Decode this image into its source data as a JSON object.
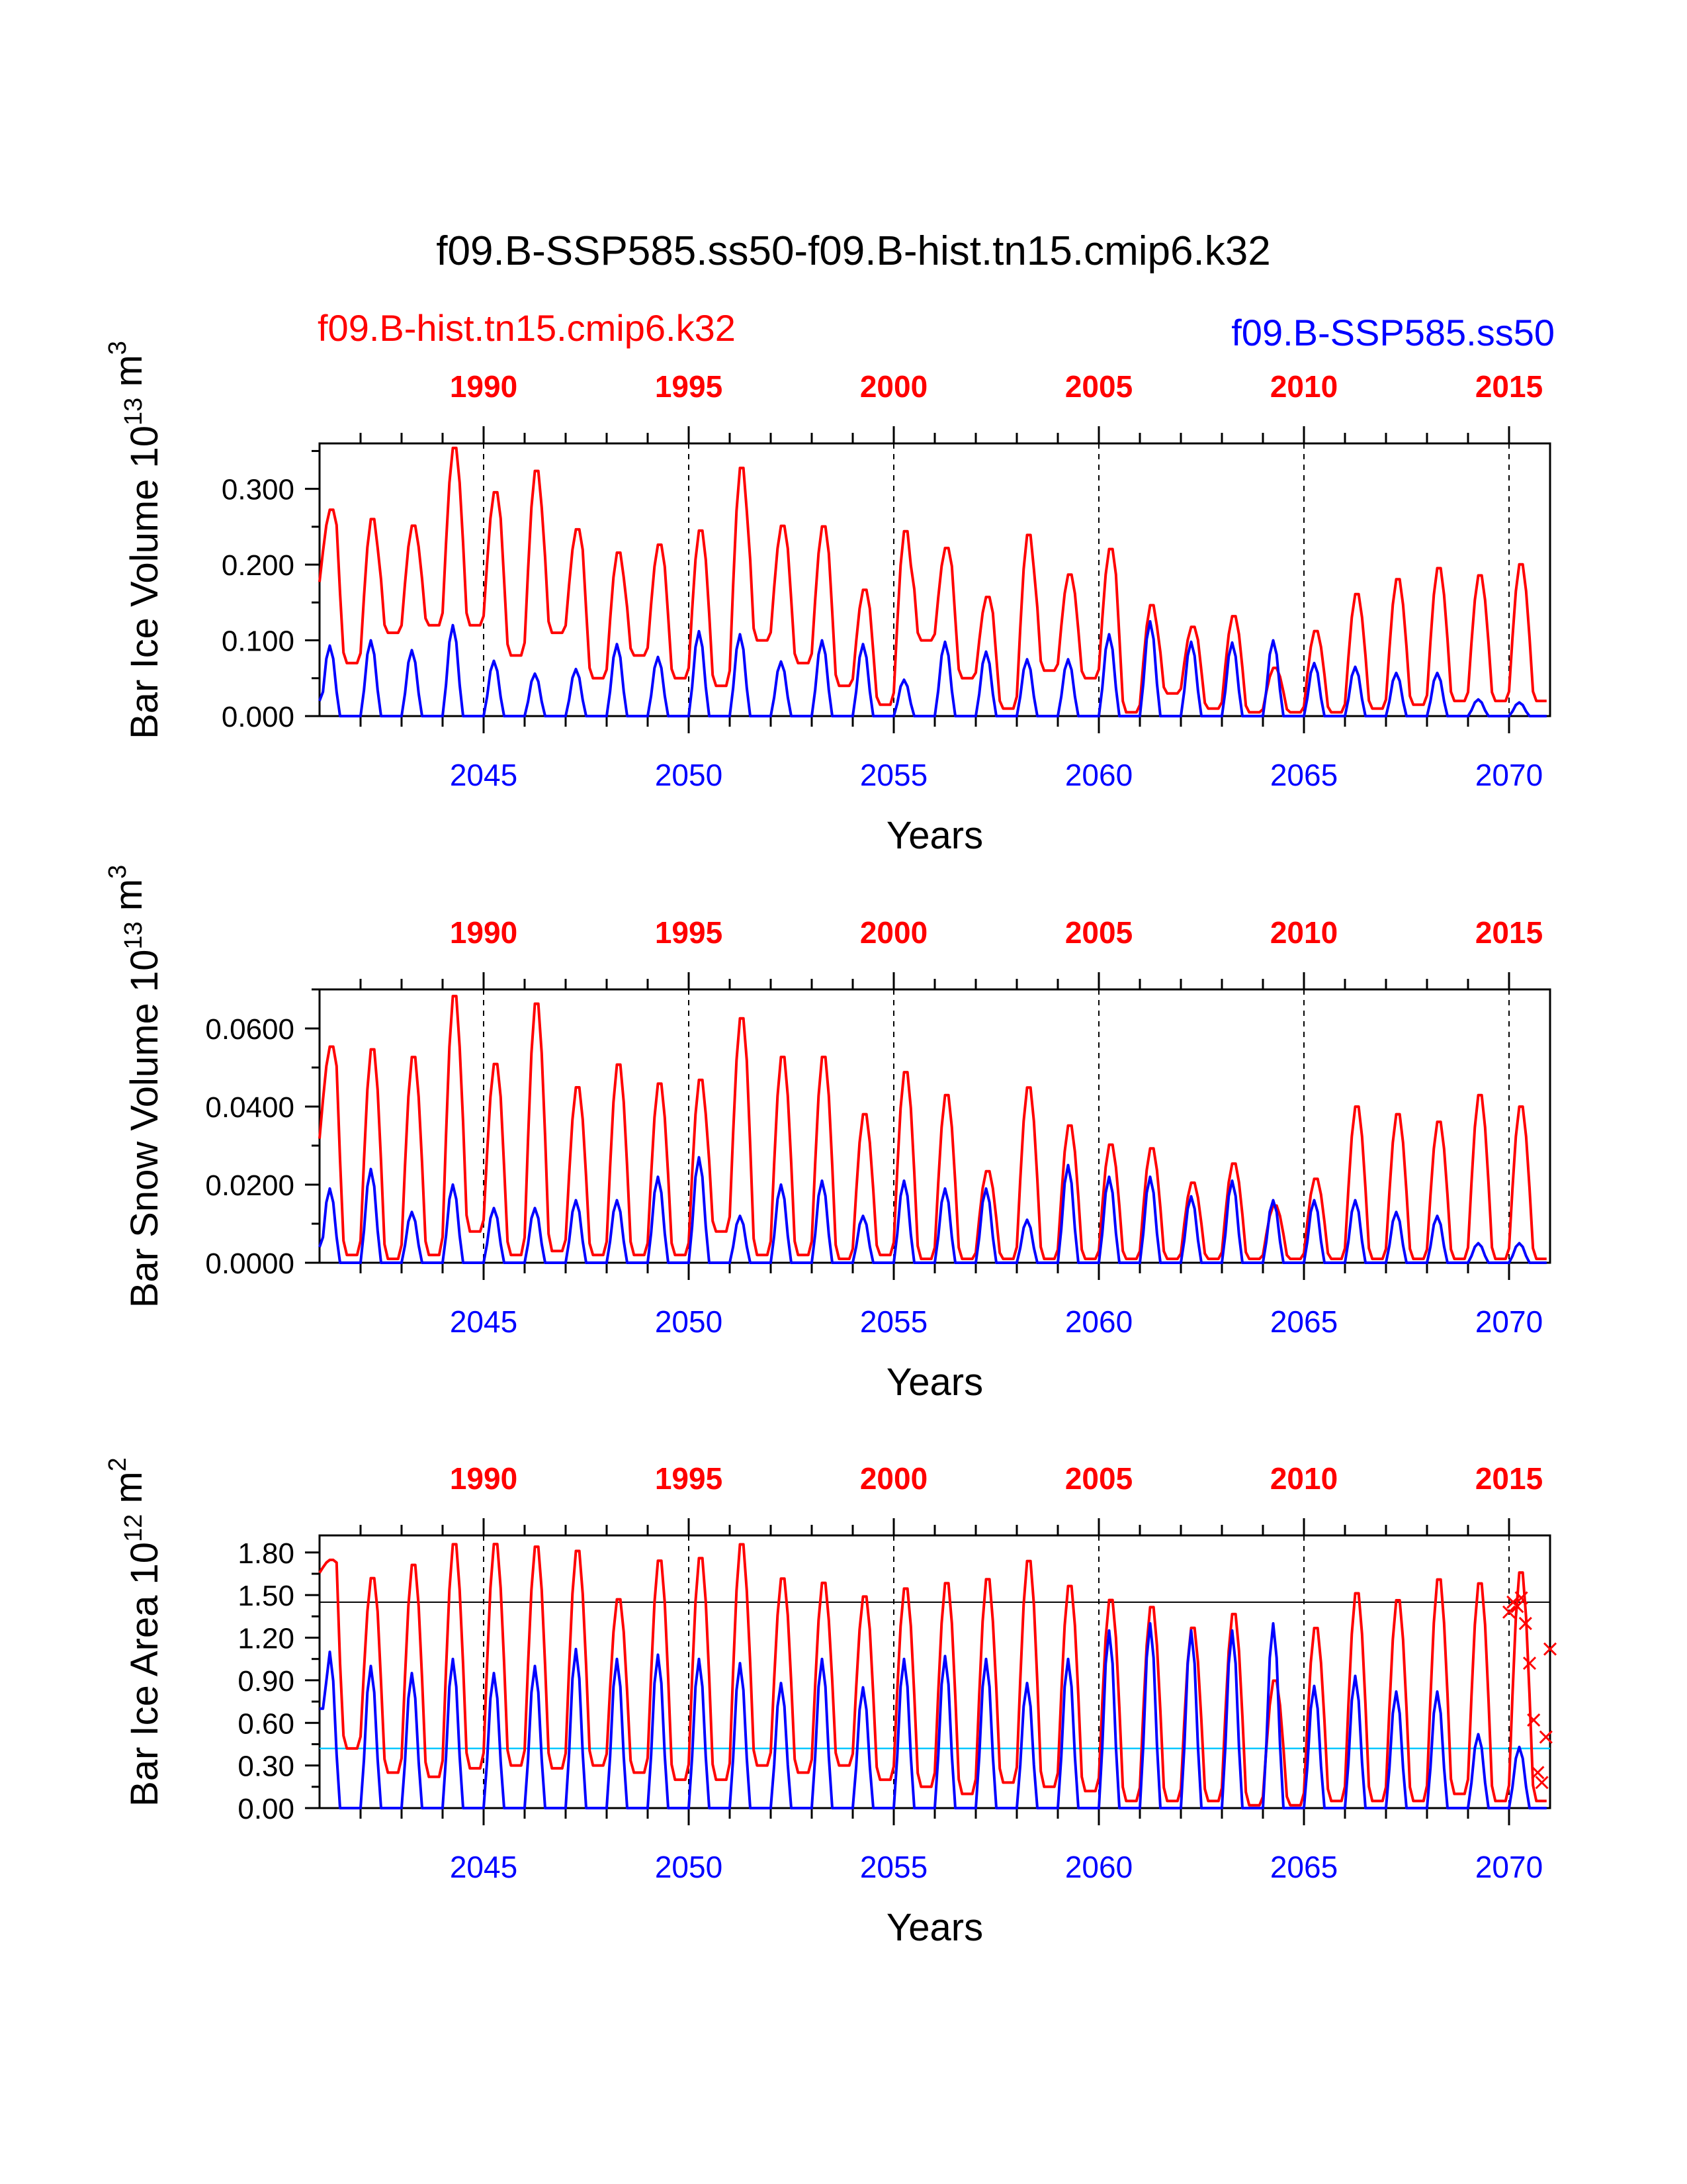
{
  "title": "f09.B-SSP585.ss50-f09.B-hist.tn15.cmip6.k32",
  "legend": {
    "case1": "f09.B-hist.tn15.cmip6.k32",
    "case2": "f09.B-SSP585.ss50"
  },
  "colors": {
    "case1": "#ff0000",
    "case2": "#0000ff",
    "threshold": "#00c8ff"
  },
  "chart_data": [
    {
      "type": "line",
      "ylabel": "Bar Ice Volume 10^13 m^3",
      "xlabel": "Years",
      "ylim": [
        0,
        0.36
      ],
      "yticks": [
        "0.000",
        "0.100",
        "0.200",
        "0.300"
      ],
      "ytick_values": [
        0,
        0.1,
        0.2,
        0.3
      ],
      "x_bottom_ticks": [
        "2045",
        "2050",
        "2055",
        "2060",
        "2065",
        "2070"
      ],
      "x_top_ticks": [
        "1990",
        "1995",
        "2000",
        "2005",
        "2010",
        "2015"
      ],
      "xlim": [
        2041,
        2071
      ],
      "series": [
        {
          "name": "f09.B-hist.tn15.cmip6.k32",
          "annual_max": [
            0.275,
            0.265,
            0.255,
            0.36,
            0.3,
            0.33,
            0.25,
            0.22,
            0.23,
            0.25,
            0.335,
            0.255,
            0.255,
            0.17,
            0.25,
            0.225,
            0.16,
            0.245,
            0.19,
            0.225,
            0.15,
            0.12,
            0.135,
            0.065,
            0.115,
            0.165,
            0.185,
            0.2,
            0.19,
            0.205
          ],
          "annual_min": [
            0.17,
            0.07,
            0.11,
            0.12,
            0.12,
            0.08,
            0.11,
            0.05,
            0.08,
            0.05,
            0.04,
            0.1,
            0.07,
            0.04,
            0.015,
            0.1,
            0.05,
            0.01,
            0.06,
            0.05,
            0.005,
            0.03,
            0.01,
            0.005,
            0.005,
            0.005,
            0.01,
            0.015,
            0.02,
            0.02
          ]
        },
        {
          "name": "f09.B-SSP585.ss50",
          "annual_max": [
            0.093,
            0.1,
            0.087,
            0.12,
            0.073,
            0.056,
            0.062,
            0.095,
            0.078,
            0.112,
            0.108,
            0.072,
            0.1,
            0.095,
            0.048,
            0.098,
            0.085,
            0.075,
            0.075,
            0.108,
            0.125,
            0.098,
            0.097,
            0.1,
            0.07,
            0.065,
            0.057,
            0.057,
            0.022,
            0.018
          ],
          "annual_min": [
            0.02,
            0,
            0,
            0,
            0,
            0,
            0,
            0,
            0,
            0,
            0,
            0,
            0,
            0,
            0,
            0,
            0,
            0,
            0,
            0,
            0,
            0,
            0,
            0,
            0,
            0,
            0,
            0,
            0,
            0
          ]
        }
      ]
    },
    {
      "type": "line",
      "ylabel": "Bar Snow Volume 10^13 m^3",
      "xlabel": "Years",
      "ylim": [
        0,
        0.07
      ],
      "yticks": [
        "0.0000",
        "0.0200",
        "0.0400",
        "0.0600"
      ],
      "ytick_values": [
        0,
        0.02,
        0.04,
        0.06
      ],
      "x_bottom_ticks": [
        "2045",
        "2050",
        "2055",
        "2060",
        "2065",
        "2070"
      ],
      "x_top_ticks": [
        "1990",
        "1995",
        "2000",
        "2005",
        "2010",
        "2015"
      ],
      "xlim": [
        2041,
        2071
      ],
      "series": [
        {
          "name": "f09.B-hist.tn15.cmip6.k32",
          "annual_max": [
            0.056,
            0.056,
            0.054,
            0.07,
            0.052,
            0.068,
            0.046,
            0.052,
            0.047,
            0.048,
            0.064,
            0.054,
            0.054,
            0.039,
            0.05,
            0.044,
            0.024,
            0.046,
            0.036,
            0.031,
            0.03,
            0.021,
            0.026,
            0.015,
            0.022,
            0.041,
            0.039,
            0.037,
            0.044,
            0.041
          ],
          "annual_min": [
            0.03,
            0.002,
            0.001,
            0.002,
            0.008,
            0.002,
            0.003,
            0.002,
            0.002,
            0.002,
            0.008,
            0.002,
            0.002,
            0.001,
            0.002,
            0.001,
            0.001,
            0.001,
            0.001,
            0.001,
            0.001,
            0.001,
            0.001,
            0.001,
            0.001,
            0.001,
            0.001,
            0.001,
            0.001,
            0.001
          ]
        },
        {
          "name": "f09.B-SSP585.ss50",
          "annual_max": [
            0.019,
            0.024,
            0.013,
            0.02,
            0.014,
            0.014,
            0.016,
            0.016,
            0.022,
            0.027,
            0.012,
            0.02,
            0.021,
            0.012,
            0.021,
            0.019,
            0.019,
            0.011,
            0.025,
            0.022,
            0.022,
            0.017,
            0.021,
            0.016,
            0.016,
            0.016,
            0.013,
            0.012,
            0.005,
            0.005
          ],
          "annual_min": [
            0.004,
            0,
            0,
            0,
            0,
            0,
            0,
            0,
            0,
            0,
            0,
            0,
            0,
            0,
            0,
            0,
            0,
            0,
            0,
            0,
            0,
            0,
            0,
            0,
            0,
            0,
            0,
            0,
            0,
            0
          ]
        }
      ]
    },
    {
      "type": "line",
      "ylabel": "Bar Ice Area 10^12 m^2",
      "xlabel": "Years",
      "ylim": [
        0,
        1.92
      ],
      "yticks": [
        "0.00",
        "0.30",
        "0.60",
        "0.90",
        "1.20",
        "1.50",
        "1.80"
      ],
      "ytick_values": [
        0,
        0.3,
        0.6,
        0.9,
        1.2,
        1.5,
        1.8
      ],
      "x_bottom_ticks": [
        "2045",
        "2050",
        "2055",
        "2060",
        "2065",
        "2070"
      ],
      "x_top_ticks": [
        "1990",
        "1995",
        "2000",
        "2005",
        "2010",
        "2015"
      ],
      "xlim": [
        2041,
        2071
      ],
      "reference_lines": [
        1.45,
        0.42
      ],
      "series": [
        {
          "name": "f09.B-hist.tn15.cmip6.k32",
          "annual_max": [
            1.75,
            1.65,
            1.75,
            1.9,
            1.9,
            1.88,
            1.85,
            1.5,
            1.78,
            1.8,
            1.9,
            1.65,
            1.62,
            1.52,
            1.58,
            1.62,
            1.65,
            1.78,
            1.6,
            1.5,
            1.45,
            1.3,
            1.4,
            0.92,
            1.3,
            1.55,
            1.5,
            1.65,
            1.62,
            1.7
          ],
          "annual_min": [
            1.65,
            0.42,
            0.25,
            0.22,
            0.28,
            0.3,
            0.28,
            0.3,
            0.25,
            0.2,
            0.2,
            0.3,
            0.25,
            0.3,
            0.2,
            0.15,
            0.1,
            0.18,
            0.15,
            0.12,
            0.05,
            0.05,
            0.05,
            0.02,
            0.02,
            0.05,
            0.05,
            0.05,
            0.1,
            0.05
          ]
        },
        {
          "name": "f09.B-SSP585.ss50",
          "annual_max": [
            1.1,
            1.0,
            0.95,
            1.05,
            0.95,
            1.0,
            1.12,
            1.05,
            1.08,
            1.05,
            1.02,
            0.88,
            1.05,
            0.85,
            1.05,
            1.07,
            1.05,
            0.88,
            1.05,
            1.25,
            1.3,
            1.25,
            1.25,
            1.3,
            0.86,
            0.93,
            0.82,
            0.82,
            0.52,
            0.43
          ],
          "annual_min": [
            0.7,
            0,
            0,
            0,
            0,
            0,
            0,
            0,
            0,
            0,
            0,
            0,
            0,
            0,
            0,
            0,
            0,
            0,
            0,
            0,
            0,
            0,
            0,
            0,
            0,
            0,
            0,
            0,
            0,
            0
          ]
        },
        {
          "name": "",
          "type": "scatter",
          "marker": "x",
          "x": [
            2070.0,
            2070.1,
            2070.2,
            2070.3,
            2070.4,
            2070.5,
            2070.6,
            2070.7,
            2070.8,
            2070.9,
            2071.0
          ],
          "y": [
            1.38,
            1.45,
            1.42,
            1.48,
            1.3,
            1.02,
            0.62,
            0.25,
            0.18,
            0.5,
            1.12
          ]
        }
      ]
    }
  ]
}
